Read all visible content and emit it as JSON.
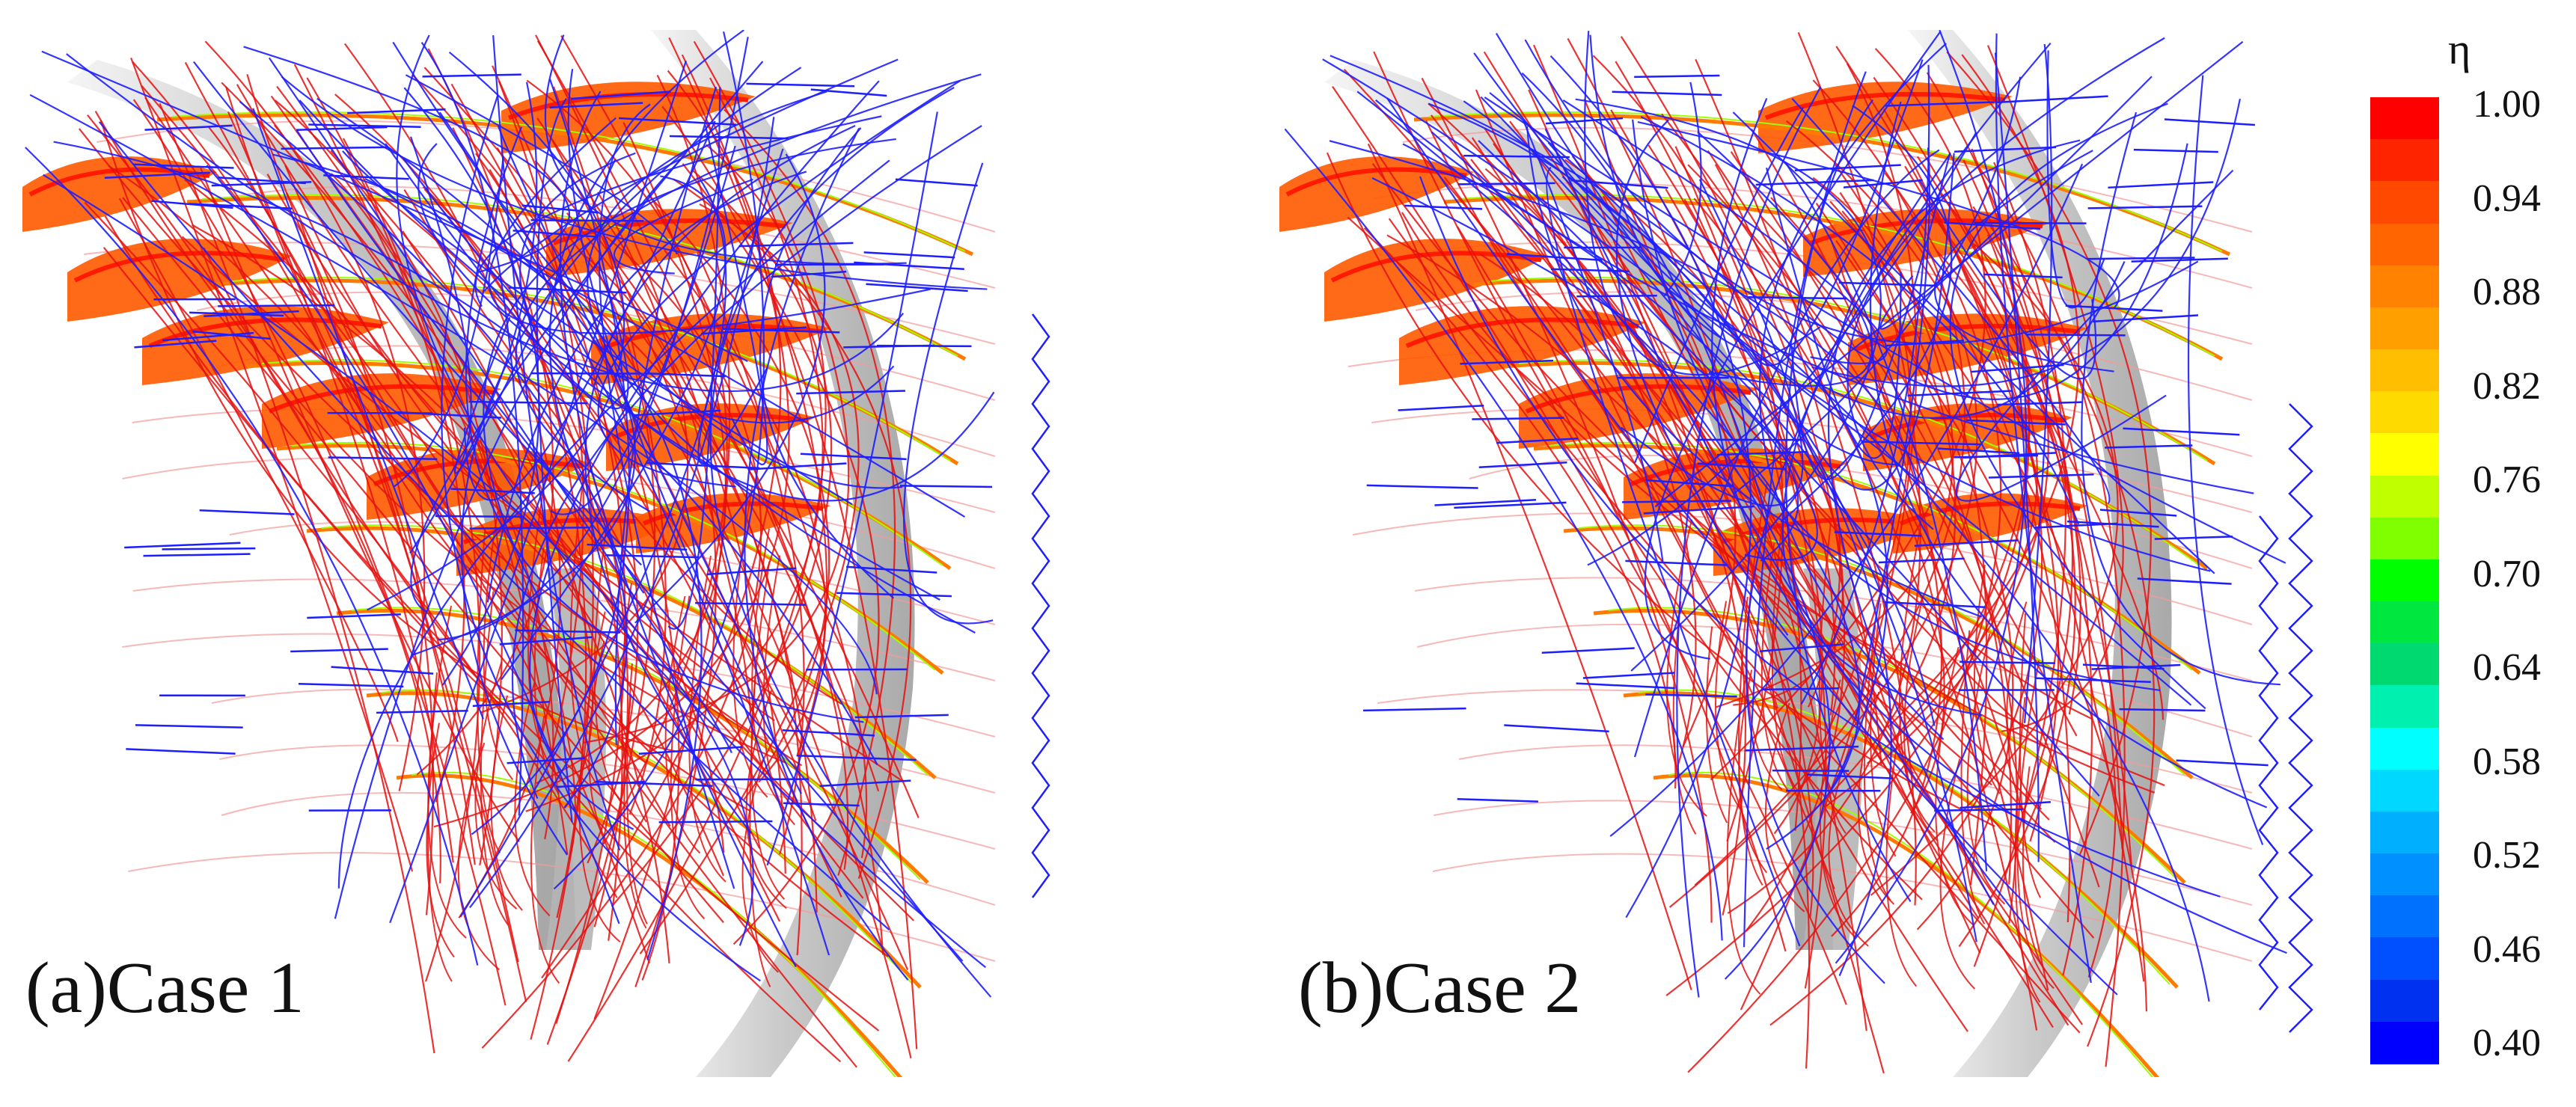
{
  "panels": [
    {
      "label": "(a)Case 1"
    },
    {
      "label": "(b)Case 2"
    }
  ],
  "colorbar": {
    "title": "η",
    "ticks": [
      "1.00",
      "0.94",
      "0.88",
      "0.82",
      "0.76",
      "0.70",
      "0.64",
      "0.58",
      "0.52",
      "0.46",
      "0.40"
    ],
    "colors": [
      "#ff0000",
      "#ff2400",
      "#ff4800",
      "#ff6500",
      "#ff8300",
      "#ffa000",
      "#ffbe00",
      "#ffda00",
      "#ffff00",
      "#c0ff00",
      "#80ff00",
      "#00ff00",
      "#00e840",
      "#00d870",
      "#00f0b0",
      "#00ffff",
      "#00d8ff",
      "#00b0ff",
      "#0090ff",
      "#0070ff",
      "#0050ff",
      "#0030f0",
      "#0000ff"
    ]
  },
  "colors": {
    "streamline_blue": "#1e1eff",
    "streamline_red": "#e51010",
    "blade": "#c8c8c8",
    "vortex_fill": "#ff5a00"
  }
}
